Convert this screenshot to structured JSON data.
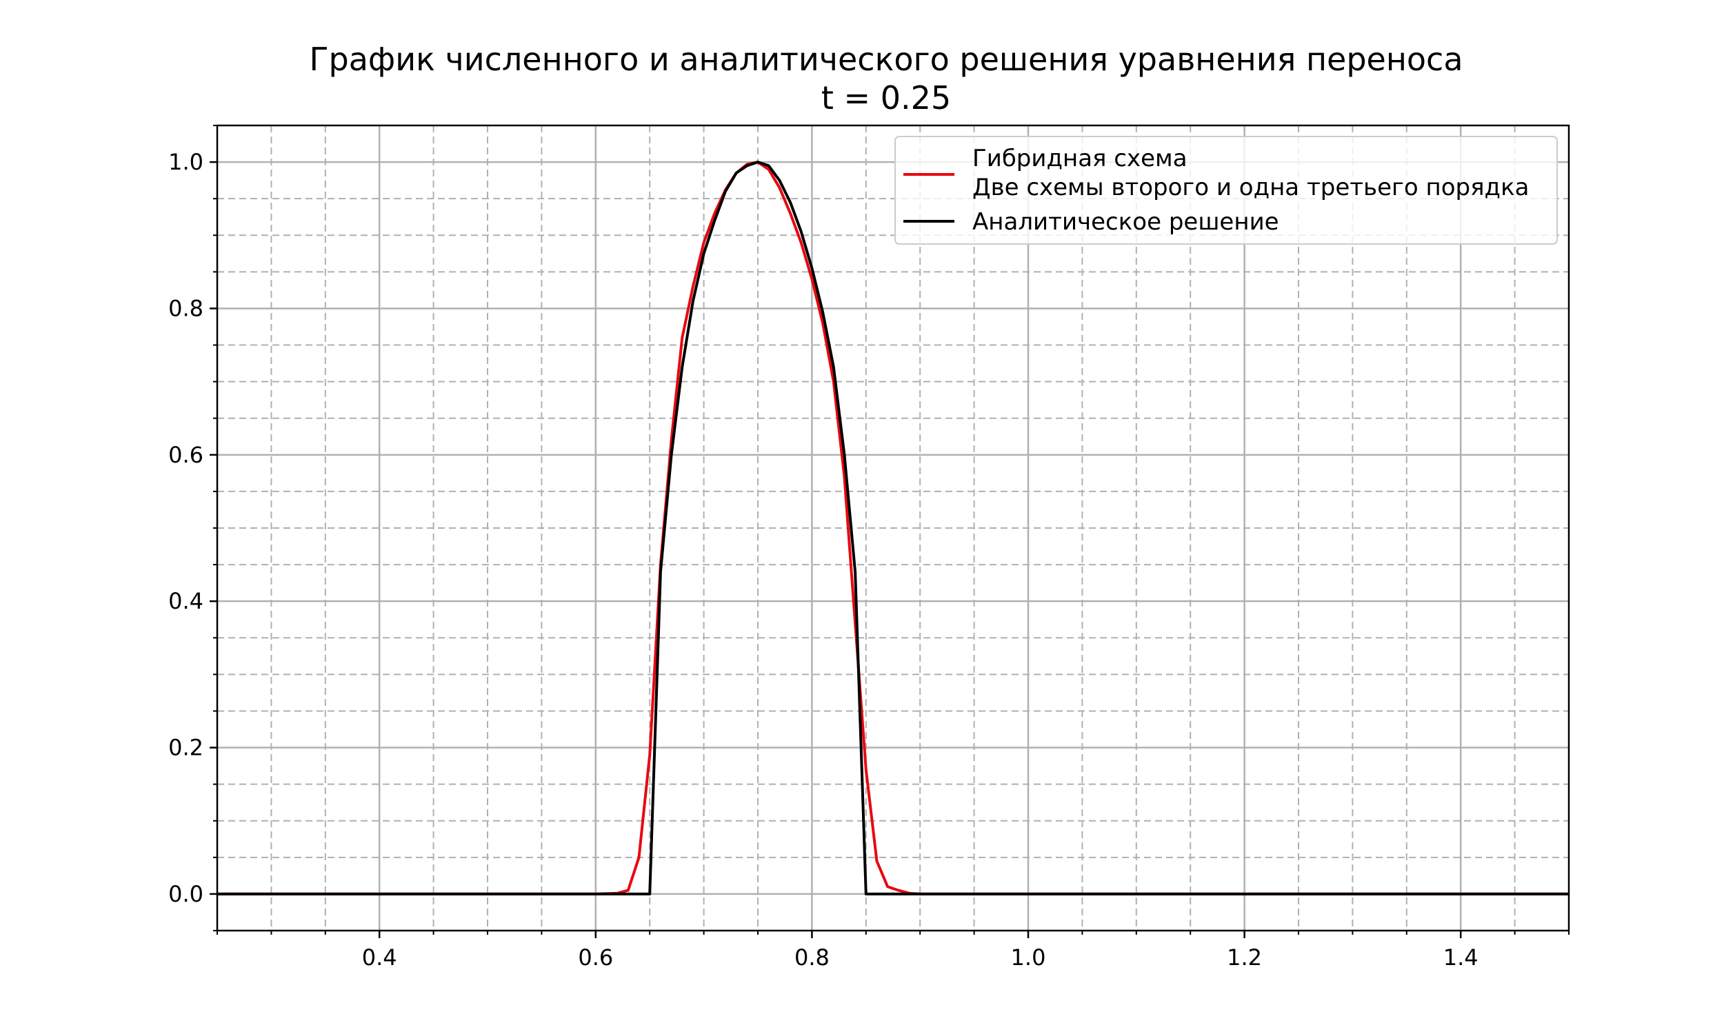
{
  "chart_data": {
    "type": "line",
    "title": "График численного и аналитического решения уравнения переноса",
    "subtitle": "t = 0.25",
    "xlabel": "",
    "ylabel": "",
    "xlim": [
      0.25,
      1.5
    ],
    "ylim": [
      -0.05,
      1.05
    ],
    "x_major_ticks": [
      0.4,
      0.6,
      0.8,
      1.0,
      1.2,
      1.4
    ],
    "x_tick_labels": [
      "0.4",
      "0.6",
      "0.8",
      "1.0",
      "1.2",
      "1.4"
    ],
    "y_major_ticks": [
      0.0,
      0.2,
      0.4,
      0.6,
      0.8,
      1.0
    ],
    "y_tick_labels": [
      "0.0",
      "0.2",
      "0.4",
      "0.6",
      "0.8",
      "1.0"
    ],
    "x_minor_step": 0.05,
    "y_minor_step": 0.05,
    "grid": true,
    "legend_position": "top-right",
    "series": [
      {
        "name": "Гибридная схема\nДве схемы второго и одна третьего порядка",
        "color": "#e8090f",
        "x": [
          0.25,
          0.6,
          0.62,
          0.63,
          0.64,
          0.65,
          0.66,
          0.67,
          0.68,
          0.69,
          0.7,
          0.71,
          0.72,
          0.73,
          0.74,
          0.75,
          0.76,
          0.77,
          0.78,
          0.79,
          0.8,
          0.81,
          0.82,
          0.83,
          0.84,
          0.85,
          0.86,
          0.87,
          0.88,
          0.89,
          0.9,
          1.5
        ],
        "y": [
          0.0,
          0.0,
          0.001,
          0.005,
          0.05,
          0.19,
          0.45,
          0.62,
          0.76,
          0.83,
          0.89,
          0.93,
          0.962,
          0.985,
          0.997,
          1.0,
          0.99,
          0.965,
          0.93,
          0.89,
          0.84,
          0.78,
          0.7,
          0.57,
          0.37,
          0.17,
          0.045,
          0.01,
          0.005,
          0.001,
          0.0,
          0.0
        ]
      },
      {
        "name": "Аналитическое решение",
        "color": "#000000",
        "x": [
          0.25,
          0.65,
          0.65,
          0.66,
          0.67,
          0.68,
          0.69,
          0.7,
          0.71,
          0.72,
          0.73,
          0.74,
          0.75,
          0.76,
          0.77,
          0.78,
          0.79,
          0.8,
          0.81,
          0.82,
          0.83,
          0.84,
          0.85,
          0.85,
          1.5
        ],
        "y": [
          0.0,
          0.0,
          0.0,
          0.44,
          0.6,
          0.72,
          0.81,
          0.875,
          0.92,
          0.96,
          0.985,
          0.995,
          1.0,
          0.995,
          0.975,
          0.945,
          0.905,
          0.855,
          0.795,
          0.72,
          0.6,
          0.44,
          0.0,
          0.0,
          0.0
        ]
      }
    ]
  }
}
